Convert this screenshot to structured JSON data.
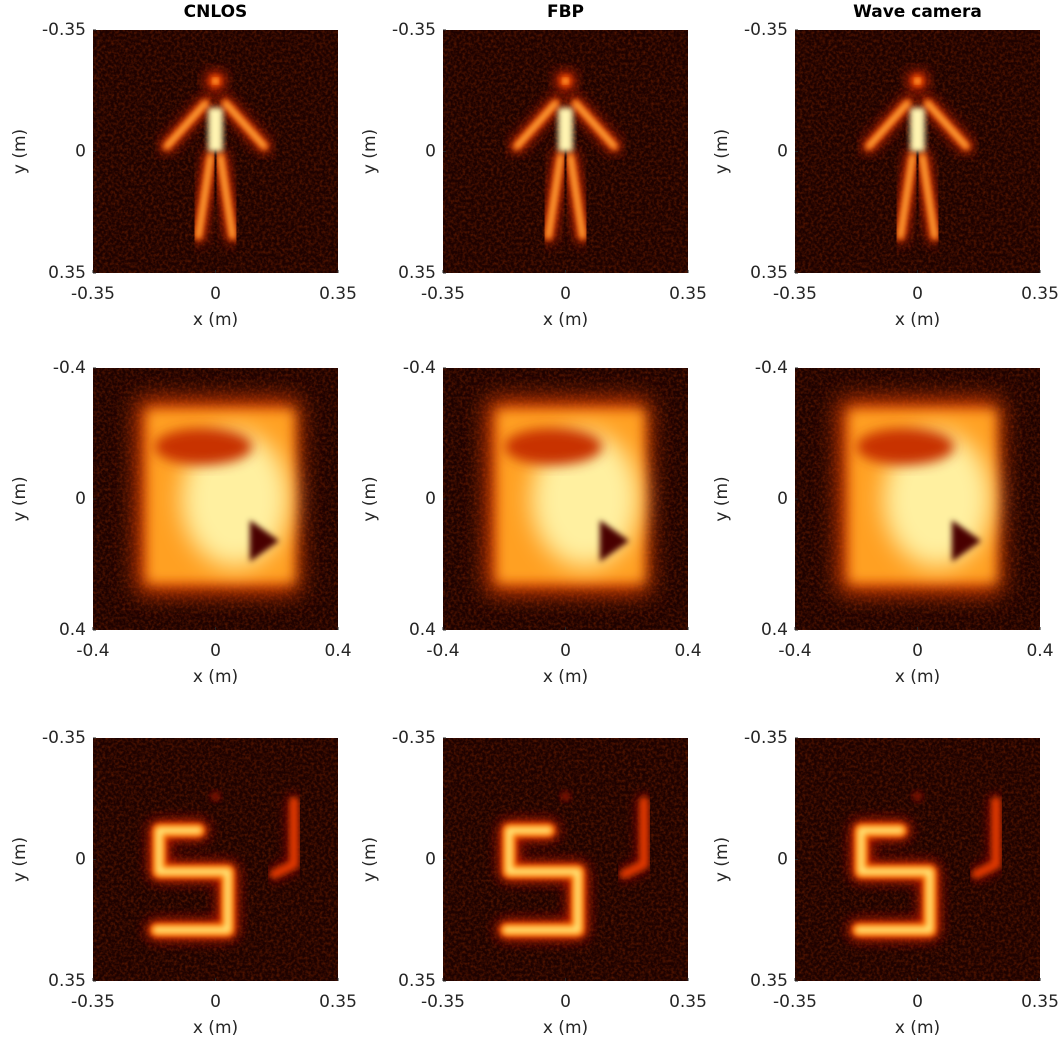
{
  "chart_data": [
    {
      "type": "image",
      "title": "CNLOS",
      "xlabel": "x (m)",
      "ylabel": "y (m)",
      "xlim": [
        -0.35,
        0.35
      ],
      "ylim": [
        -0.35,
        0.35
      ],
      "xticks": [
        -0.35,
        0,
        0.35
      ],
      "yticks": [
        -0.35,
        0,
        0.35
      ],
      "y_reversed": true,
      "colormap": "hot"
    },
    {
      "type": "image",
      "title": "FBP",
      "xlabel": "x (m)",
      "ylabel": "y (m)",
      "xlim": [
        -0.35,
        0.35
      ],
      "ylim": [
        -0.35,
        0.35
      ],
      "xticks": [
        -0.35,
        0,
        0.35
      ],
      "yticks": [
        -0.35,
        0,
        0.35
      ],
      "y_reversed": true,
      "colormap": "hot"
    },
    {
      "type": "image",
      "title": "Wave camera",
      "xlabel": "x (m)",
      "ylabel": "y (m)",
      "xlim": [
        -0.35,
        0.35
      ],
      "ylim": [
        -0.35,
        0.35
      ],
      "xticks": [
        -0.35,
        0,
        0.35
      ],
      "yticks": [
        -0.35,
        0,
        0.35
      ],
      "y_reversed": true,
      "colormap": "hot"
    },
    {
      "type": "image",
      "xlabel": "x (m)",
      "ylabel": "y (m)",
      "xlim": [
        -0.4,
        0.4
      ],
      "ylim": [
        -0.4,
        0.4
      ],
      "xticks": [
        -0.4,
        0,
        0.4
      ],
      "yticks": [
        -0.4,
        0,
        0.4
      ],
      "y_reversed": true,
      "colormap": "hot"
    },
    {
      "type": "image",
      "xlabel": "x (m)",
      "ylabel": "y (m)",
      "xlim": [
        -0.4,
        0.4
      ],
      "ylim": [
        -0.4,
        0.4
      ],
      "xticks": [
        -0.4,
        0,
        0.4
      ],
      "yticks": [
        -0.4,
        0,
        0.4
      ],
      "y_reversed": true,
      "colormap": "hot"
    },
    {
      "type": "image",
      "xlabel": "x (m)",
      "ylabel": "y (m)",
      "xlim": [
        -0.4,
        0.4
      ],
      "ylim": [
        -0.4,
        0.4
      ],
      "xticks": [
        -0.4,
        0,
        0.4
      ],
      "yticks": [
        -0.4,
        0,
        0.4
      ],
      "y_reversed": true,
      "colormap": "hot"
    },
    {
      "type": "image",
      "xlabel": "x (m)",
      "ylabel": "y (m)",
      "xlim": [
        -0.35,
        0.35
      ],
      "ylim": [
        -0.35,
        0.35
      ],
      "xticks": [
        -0.35,
        0,
        0.35
      ],
      "yticks": [
        -0.35,
        0,
        0.35
      ],
      "y_reversed": true,
      "colormap": "hot"
    },
    {
      "type": "image",
      "xlabel": "x (m)",
      "ylabel": "y (m)",
      "xlim": [
        -0.35,
        0.35
      ],
      "ylim": [
        -0.35,
        0.35
      ],
      "xticks": [
        -0.35,
        0,
        0.35
      ],
      "yticks": [
        -0.35,
        0,
        0.35
      ],
      "y_reversed": true,
      "colormap": "hot"
    },
    {
      "type": "image",
      "xlabel": "x (m)",
      "ylabel": "y (m)",
      "xlim": [
        -0.35,
        0.35
      ],
      "ylim": [
        -0.35,
        0.35
      ],
      "xticks": [
        -0.35,
        0,
        0.35
      ],
      "yticks": [
        -0.35,
        0,
        0.35
      ],
      "y_reversed": true,
      "colormap": "hot"
    }
  ]
}
